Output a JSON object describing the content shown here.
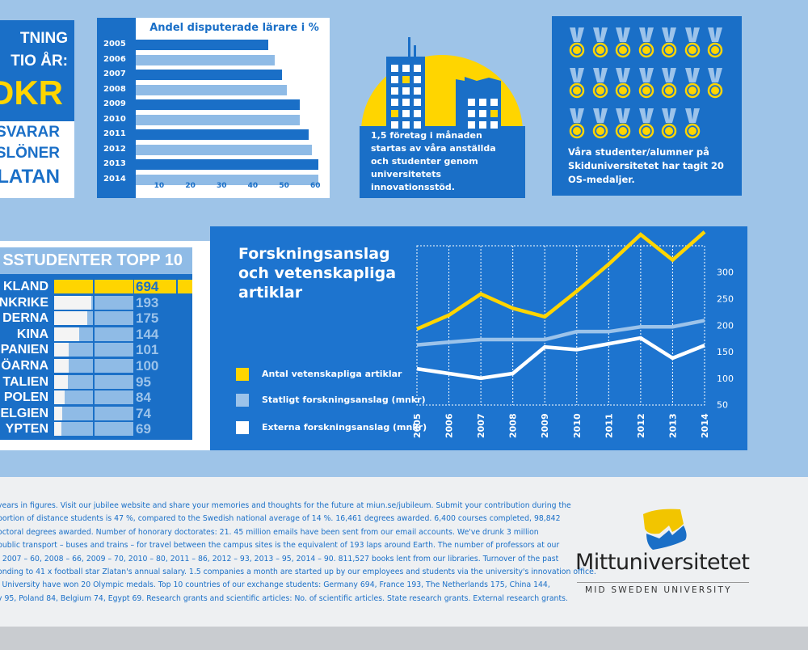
{
  "zlatan_panel": {
    "lines_top": [
      "TNING",
      "TIO ÅR:"
    ],
    "big": "DKR",
    "lines_bottom": [
      "TSVARAR",
      "SLÖNER",
      "LATAN"
    ]
  },
  "bar_chart": {
    "type": "bar",
    "title": "Andel disputerade lärare i %",
    "categories": [
      "2005",
      "2006",
      "2007",
      "2008",
      "2009",
      "2010",
      "2011",
      "2012",
      "2013",
      "2014"
    ],
    "values": [
      45,
      47,
      49.5,
      51,
      55,
      55,
      58,
      59,
      61,
      61
    ],
    "xticks": [
      "10",
      "20",
      "30",
      "40",
      "50",
      "60"
    ],
    "xlim": [
      0,
      62
    ],
    "colors": [
      "#1a6fc7",
      "#8fbbe6"
    ]
  },
  "building_panel": {
    "text": [
      "1,5 företag i månaden",
      "startas av våra anställda",
      "och studenter genom",
      "universitetets innovationsstöd."
    ]
  },
  "medal_panel": {
    "count": 20,
    "text": [
      "Våra studenter/alumner på",
      "Skiduniversitetet har tagit 20",
      "OS-medaljer."
    ]
  },
  "table": {
    "title": "SSTUDENTER TOPP 10",
    "rows": [
      {
        "country": "KLAND",
        "value": "694"
      },
      {
        "country": "NKRIKE",
        "value": "193"
      },
      {
        "country": "DERNA",
        "value": "175"
      },
      {
        "country": "KINA",
        "value": "144"
      },
      {
        "country": "PANIEN",
        "value": "101"
      },
      {
        "country": "ÖARNA",
        "value": "100"
      },
      {
        "country": "TALIEN",
        "value": "95"
      },
      {
        "country": "POLEN",
        "value": "84"
      },
      {
        "country": "ELGIEN",
        "value": "74"
      },
      {
        "country": "YPTEN",
        "value": "69"
      }
    ]
  },
  "chart_data": {
    "type": "line",
    "title": "Forskningsanslag och vetenskapliga artiklar",
    "title_lines": [
      "Forskningsanslag",
      "och vetenskapliga",
      "artiklar"
    ],
    "x": [
      "2005",
      "2006",
      "2007",
      "2008",
      "2009",
      "2010",
      "2011",
      "2012",
      "2013",
      "2014"
    ],
    "ylim": [
      50,
      350
    ],
    "yticks": [
      "300",
      "250",
      "200",
      "150",
      "100",
      "50"
    ],
    "grid": true,
    "series": [
      {
        "name": "Antal vetenskapliga artiklar",
        "color": "#ffd500",
        "values": [
          193,
          219,
          259,
          232,
          216,
          264,
          315,
          371,
          323,
          376
        ]
      },
      {
        "name": "Statligt forskningsanslag (mnkr)",
        "color": "#9cc3ea",
        "values": [
          163,
          168,
          173,
          173,
          173,
          188,
          188,
          197,
          197,
          209
        ]
      },
      {
        "name": "Externa forskningsanslag (mnkr)",
        "color": "#ffffff",
        "values": [
          118,
          109,
          100,
          109,
          159,
          154,
          165,
          176,
          138,
          162
        ]
      }
    ]
  },
  "footer": {
    "lines": [
      "years in figures. Visit our jubilee website and share your memories and thoughts for the future at miun.se/jubileum. Submit your contribution during the",
      "portion of distance students is 47 %, compared to the Swedish national average of 14 %. 16,461 degrees awarded. 6,400 courses completed, 98,842",
      "octoral degrees awarded. Number of honorary doctorates: 21. 45 million emails have been sent from our email accounts. We've drunk 3 million",
      "public transport – buses and trains – for travel between the campus sites is the equivalent of 193 laps around Earth. The number of professors at our",
      ", 2007 – 60, 2008 – 66, 2009 – 70, 2010 – 80, 2011 – 86, 2012 – 93, 2013 – 95, 2014 – 90. 811,527 books lent from our libraries. Turnover of the past",
      "onding to 41 x football star Zlatan's annual salary. 1.5 companies a month are started up by our employees and students via the university's innovation office.",
      "i University have won 20 Olympic medals. Top 10 countries of our exchange students: Germany 694, France 193, The Netherlands 175, China 144,",
      "y 95, Poland 84, Belgium 74, Egypt 69. Research grants and scientific articles: No. of scientific articles. State research grants. External research grants."
    ],
    "logo": {
      "name": "Mittuniversitetet",
      "subtitle": "MID SWEDEN UNIVERSITY"
    }
  }
}
